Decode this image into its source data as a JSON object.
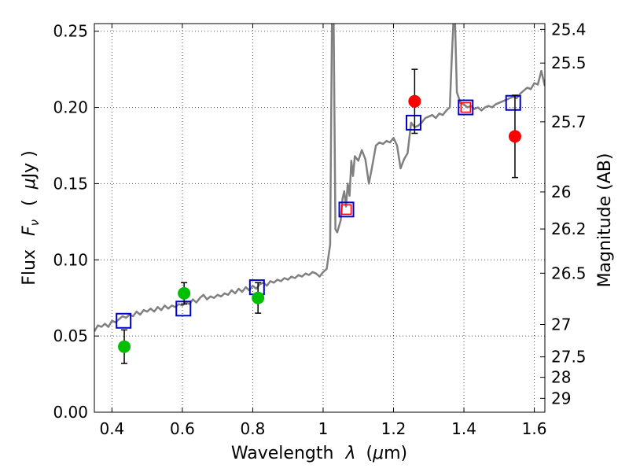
{
  "chart_data": {
    "type": "scatter",
    "xlabel_prefix": "Wavelength",
    "xlabel_symbol": "λ",
    "xlabel_unit_open": "(",
    "xlabel_unit_mu": "μ",
    "xlabel_unit_rest": "m)",
    "ylabel_prefix": "Flux",
    "ylabel_symbol": "F",
    "ylabel_sub": "ν",
    "ylabel_unit_open": "(",
    "ylabel_unit_mu": "μ",
    "ylabel_unit_rest": "Jy )",
    "y2label": "Magnitude (AB)",
    "xlim": [
      0.35,
      1.63
    ],
    "ylim": [
      0.0,
      0.255
    ],
    "grid": true,
    "xticks": [
      {
        "v": 0.4,
        "label": "0.4"
      },
      {
        "v": 0.6,
        "label": "0.6"
      },
      {
        "v": 0.8,
        "label": "0.8"
      },
      {
        "v": 1.0,
        "label": "1"
      },
      {
        "v": 1.2,
        "label": "1.2"
      },
      {
        "v": 1.4,
        "label": "1.4"
      },
      {
        "v": 1.6,
        "label": "1.6"
      }
    ],
    "yticks": [
      {
        "v": 0.0,
        "label": "0.00"
      },
      {
        "v": 0.05,
        "label": "0.05"
      },
      {
        "v": 0.1,
        "label": "0.10"
      },
      {
        "v": 0.15,
        "label": "0.15"
      },
      {
        "v": 0.2,
        "label": "0.20"
      },
      {
        "v": 0.25,
        "label": "0.25"
      }
    ],
    "y2ticks": [
      {
        "label": "25.4",
        "mag": 25.4
      },
      {
        "label": "25.5",
        "mag": 25.5
      },
      {
        "label": "25.7",
        "mag": 25.7
      },
      {
        "label": "26",
        "mag": 26.0
      },
      {
        "label": "26.2",
        "mag": 26.2
      },
      {
        "label": "26.5",
        "mag": 26.5
      },
      {
        "label": "27",
        "mag": 27.0
      },
      {
        "label": "27.5",
        "mag": 27.5
      },
      {
        "label": "28",
        "mag": 28.0
      },
      {
        "label": "29",
        "mag": 29.0
      }
    ],
    "colors": {
      "spectrum": "#808080",
      "green": "#00bf00",
      "red": "#ff0000",
      "model": "#0000cc",
      "errorbar": "#000000",
      "grid": "#555555"
    },
    "spectrum": [
      [
        0.35,
        0.053
      ],
      [
        0.36,
        0.057
      ],
      [
        0.37,
        0.056
      ],
      [
        0.38,
        0.058
      ],
      [
        0.39,
        0.056
      ],
      [
        0.4,
        0.06
      ],
      [
        0.41,
        0.059
      ],
      [
        0.42,
        0.061
      ],
      [
        0.43,
        0.063
      ],
      [
        0.44,
        0.062
      ],
      [
        0.45,
        0.064
      ],
      [
        0.46,
        0.063
      ],
      [
        0.47,
        0.066
      ],
      [
        0.48,
        0.064
      ],
      [
        0.49,
        0.067
      ],
      [
        0.5,
        0.066
      ],
      [
        0.51,
        0.068
      ],
      [
        0.52,
        0.066
      ],
      [
        0.53,
        0.069
      ],
      [
        0.54,
        0.067
      ],
      [
        0.55,
        0.07
      ],
      [
        0.56,
        0.068
      ],
      [
        0.57,
        0.07
      ],
      [
        0.58,
        0.069
      ],
      [
        0.59,
        0.071
      ],
      [
        0.6,
        0.07
      ],
      [
        0.61,
        0.072
      ],
      [
        0.62,
        0.071
      ],
      [
        0.63,
        0.074
      ],
      [
        0.64,
        0.072
      ],
      [
        0.65,
        0.075
      ],
      [
        0.66,
        0.077
      ],
      [
        0.67,
        0.074
      ],
      [
        0.68,
        0.076
      ],
      [
        0.69,
        0.075
      ],
      [
        0.7,
        0.077
      ],
      [
        0.71,
        0.076
      ],
      [
        0.72,
        0.078
      ],
      [
        0.73,
        0.077
      ],
      [
        0.74,
        0.08
      ],
      [
        0.75,
        0.078
      ],
      [
        0.76,
        0.081
      ],
      [
        0.77,
        0.079
      ],
      [
        0.78,
        0.082
      ],
      [
        0.79,
        0.08
      ],
      [
        0.8,
        0.083
      ],
      [
        0.81,
        0.081
      ],
      [
        0.82,
        0.084
      ],
      [
        0.83,
        0.085
      ],
      [
        0.84,
        0.083
      ],
      [
        0.85,
        0.086
      ],
      [
        0.86,
        0.085
      ],
      [
        0.87,
        0.087
      ],
      [
        0.88,
        0.086
      ],
      [
        0.89,
        0.088
      ],
      [
        0.9,
        0.087
      ],
      [
        0.91,
        0.089
      ],
      [
        0.92,
        0.088
      ],
      [
        0.93,
        0.09
      ],
      [
        0.94,
        0.089
      ],
      [
        0.95,
        0.091
      ],
      [
        0.96,
        0.09
      ],
      [
        0.97,
        0.092
      ],
      [
        0.98,
        0.091
      ],
      [
        0.99,
        0.089
      ],
      [
        1.0,
        0.092
      ],
      [
        1.01,
        0.094
      ],
      [
        1.02,
        0.11
      ],
      [
        1.025,
        0.255
      ],
      [
        1.03,
        0.255
      ],
      [
        1.035,
        0.12
      ],
      [
        1.04,
        0.118
      ],
      [
        1.045,
        0.122
      ],
      [
        1.05,
        0.126
      ],
      [
        1.055,
        0.14
      ],
      [
        1.06,
        0.145
      ],
      [
        1.065,
        0.135
      ],
      [
        1.07,
        0.15
      ],
      [
        1.075,
        0.142
      ],
      [
        1.08,
        0.165
      ],
      [
        1.085,
        0.155
      ],
      [
        1.09,
        0.168
      ],
      [
        1.1,
        0.165
      ],
      [
        1.11,
        0.172
      ],
      [
        1.12,
        0.166
      ],
      [
        1.13,
        0.15
      ],
      [
        1.14,
        0.162
      ],
      [
        1.15,
        0.175
      ],
      [
        1.16,
        0.177
      ],
      [
        1.17,
        0.176
      ],
      [
        1.18,
        0.178
      ],
      [
        1.19,
        0.177
      ],
      [
        1.2,
        0.18
      ],
      [
        1.21,
        0.175
      ],
      [
        1.22,
        0.16
      ],
      [
        1.23,
        0.166
      ],
      [
        1.24,
        0.17
      ],
      [
        1.25,
        0.19
      ],
      [
        1.26,
        0.187
      ],
      [
        1.27,
        0.188
      ],
      [
        1.28,
        0.19
      ],
      [
        1.29,
        0.193
      ],
      [
        1.3,
        0.194
      ],
      [
        1.31,
        0.195
      ],
      [
        1.32,
        0.193
      ],
      [
        1.33,
        0.196
      ],
      [
        1.34,
        0.195
      ],
      [
        1.35,
        0.198
      ],
      [
        1.36,
        0.2
      ],
      [
        1.365,
        0.23
      ],
      [
        1.37,
        0.255
      ],
      [
        1.375,
        0.255
      ],
      [
        1.38,
        0.21
      ],
      [
        1.39,
        0.203
      ],
      [
        1.4,
        0.202
      ],
      [
        1.41,
        0.2
      ],
      [
        1.42,
        0.201
      ],
      [
        1.43,
        0.199
      ],
      [
        1.44,
        0.2
      ],
      [
        1.45,
        0.198
      ],
      [
        1.46,
        0.2
      ],
      [
        1.47,
        0.201
      ],
      [
        1.48,
        0.2
      ],
      [
        1.49,
        0.202
      ],
      [
        1.5,
        0.203
      ],
      [
        1.51,
        0.204
      ],
      [
        1.52,
        0.205
      ],
      [
        1.53,
        0.206
      ],
      [
        1.54,
        0.207
      ],
      [
        1.55,
        0.206
      ],
      [
        1.56,
        0.209
      ],
      [
        1.57,
        0.211
      ],
      [
        1.58,
        0.213
      ],
      [
        1.59,
        0.212
      ],
      [
        1.6,
        0.216
      ],
      [
        1.61,
        0.215
      ],
      [
        1.62,
        0.224
      ],
      [
        1.63,
        0.214
      ]
    ],
    "observed": [
      {
        "x": 0.435,
        "y": 0.043,
        "err": 0.011,
        "color": "green"
      },
      {
        "x": 0.605,
        "y": 0.078,
        "err": 0.007,
        "color": "green"
      },
      {
        "x": 0.815,
        "y": 0.075,
        "err": 0.01,
        "color": "green"
      },
      {
        "x": 1.26,
        "y": 0.204,
        "err": 0.021,
        "color": "red"
      },
      {
        "x": 1.545,
        "y": 0.181,
        "err": 0.027,
        "color": "red"
      }
    ],
    "model": [
      {
        "x": 0.433,
        "y": 0.06,
        "inner": false
      },
      {
        "x": 0.603,
        "y": 0.068,
        "inner": false
      },
      {
        "x": 0.812,
        "y": 0.082,
        "inner": false
      },
      {
        "x": 1.066,
        "y": 0.133,
        "inner": true
      },
      {
        "x": 1.257,
        "y": 0.19,
        "inner": false
      },
      {
        "x": 1.405,
        "y": 0.2,
        "inner": true
      },
      {
        "x": 1.54,
        "y": 0.203,
        "inner": false
      }
    ]
  }
}
